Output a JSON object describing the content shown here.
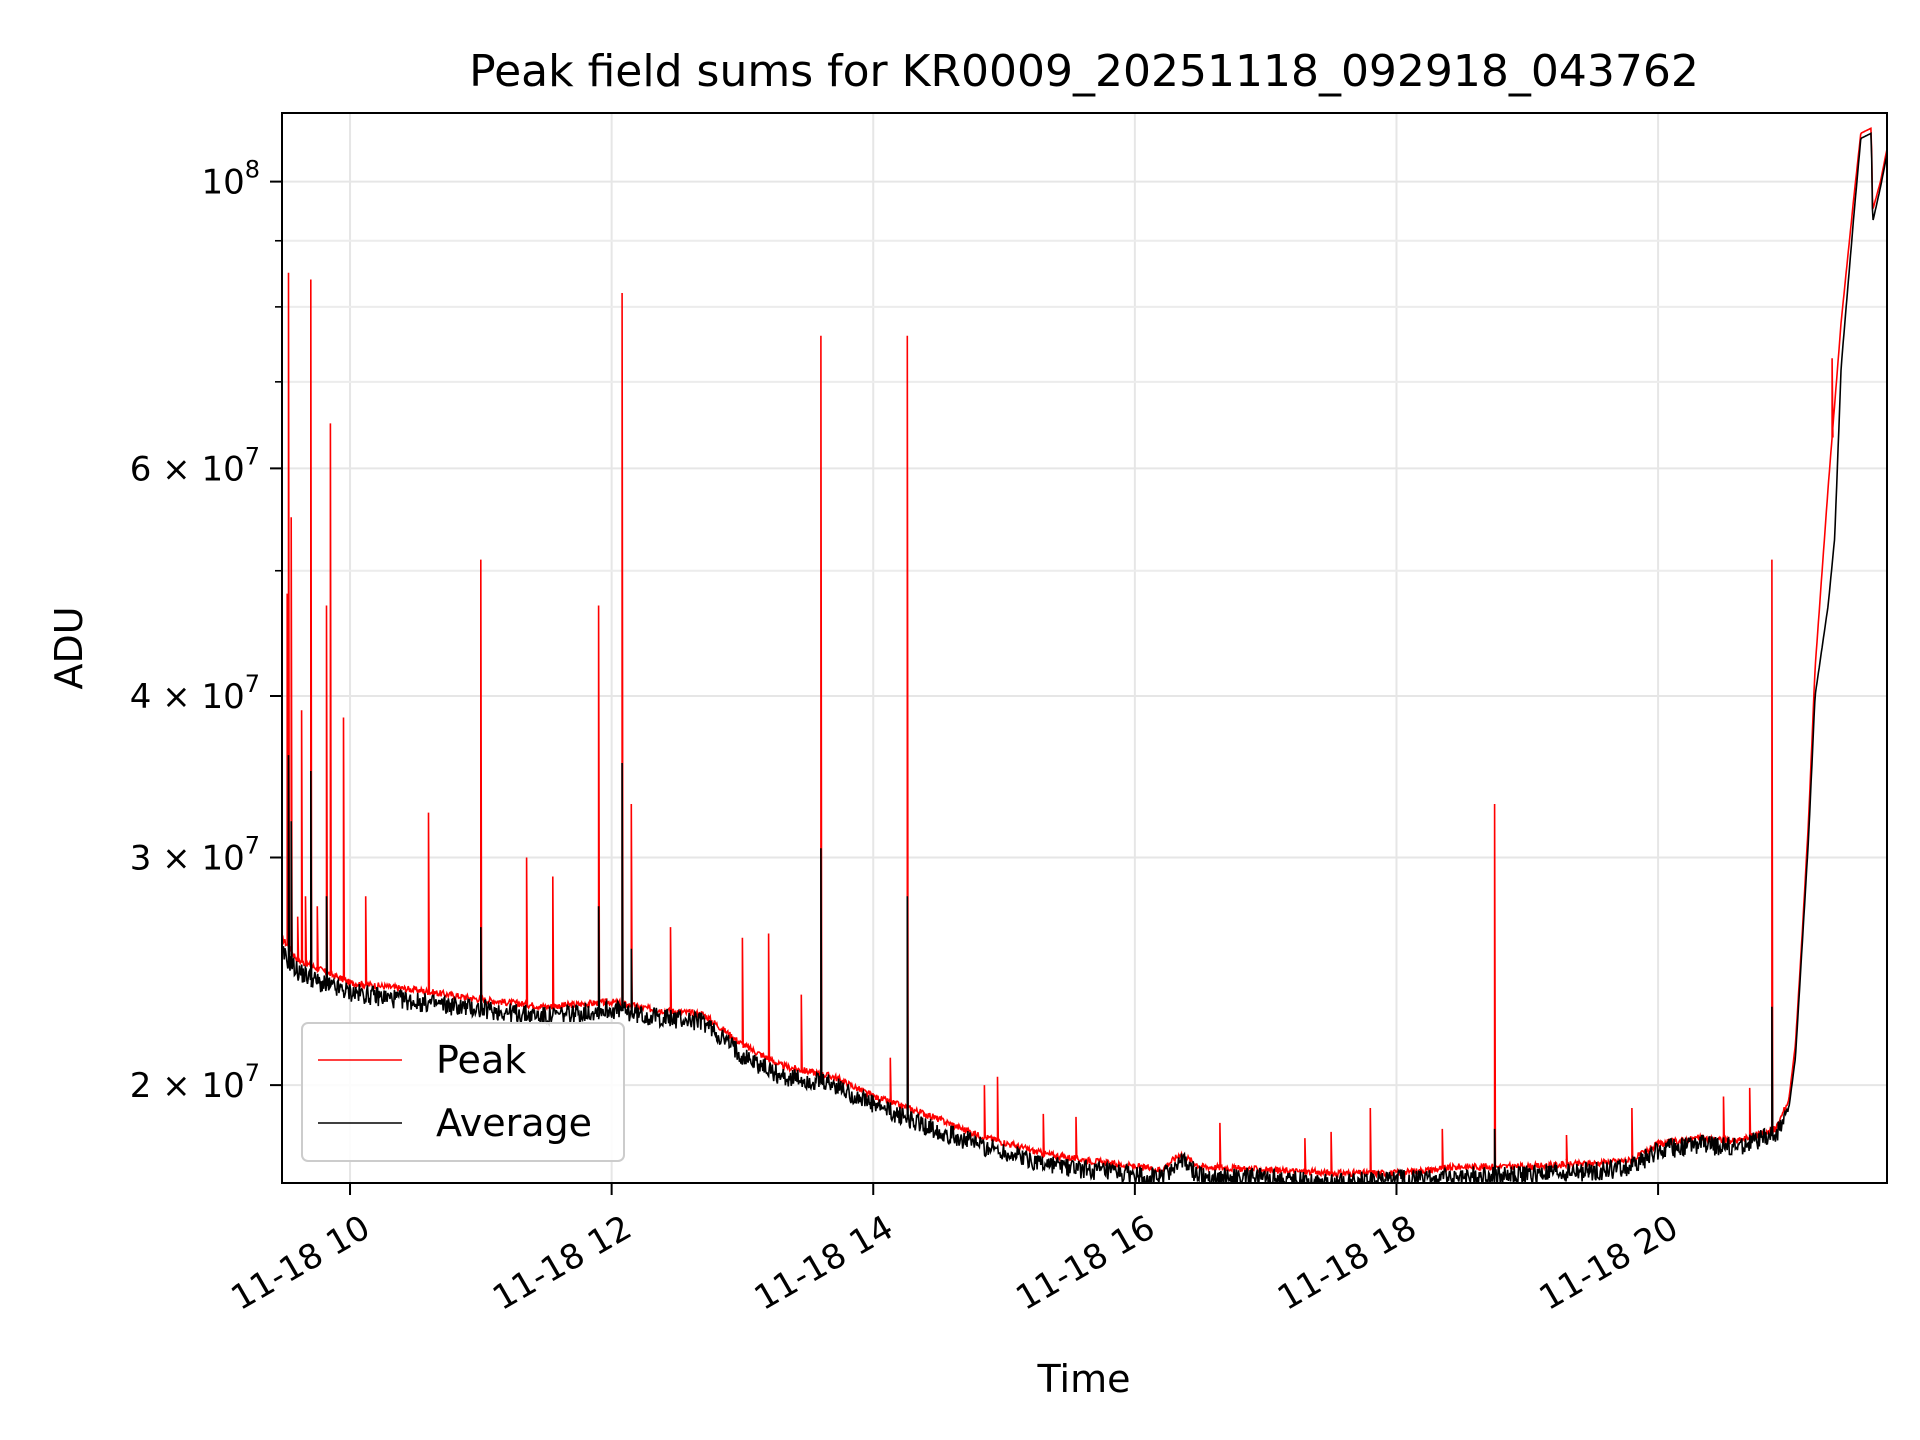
{
  "chart_data": {
    "type": "line",
    "title": "Peak field sums for KR0009_20251118_092918_043762",
    "xlabel": "Time",
    "ylabel": "ADU",
    "x_range_hours": [
      9.48,
      21.75
    ],
    "ylim": [
      16800000,
      113000000
    ],
    "y_scale": "log",
    "grid": true,
    "legend_position": "lower-left",
    "x_ticks": [
      {
        "hour": 10,
        "label": "11-18 10"
      },
      {
        "hour": 12,
        "label": "11-18 12"
      },
      {
        "hour": 14,
        "label": "11-18 14"
      },
      {
        "hour": 16,
        "label": "11-18 16"
      },
      {
        "hour": 18,
        "label": "11-18 18"
      },
      {
        "hour": 20,
        "label": "11-18 20"
      }
    ],
    "y_ticks": [
      {
        "value": 20000000,
        "mantissa": "2",
        "exp": "7",
        "times": "×",
        "base": "10"
      },
      {
        "value": 30000000,
        "mantissa": "3",
        "exp": "7",
        "times": "×",
        "base": "10"
      },
      {
        "value": 40000000,
        "mantissa": "4",
        "exp": "7",
        "times": "×",
        "base": "10"
      },
      {
        "value": 60000000,
        "mantissa": "6",
        "exp": "7",
        "times": "×",
        "base": "10"
      },
      {
        "value": 100000000,
        "mantissa": "",
        "exp": "8",
        "times": "",
        "base": "10"
      }
    ],
    "y_minor_ticks": [
      50000000,
      70000000,
      80000000,
      90000000
    ],
    "series": [
      {
        "name": "Peak",
        "color": "#ff0000",
        "baseline": [
          [
            9.48,
            26000000
          ],
          [
            9.6,
            25000000
          ],
          [
            9.8,
            24500000
          ],
          [
            10.0,
            24000000
          ],
          [
            10.5,
            23700000
          ],
          [
            11.0,
            23300000
          ],
          [
            11.5,
            23000000
          ],
          [
            12.0,
            23200000
          ],
          [
            12.3,
            22900000
          ],
          [
            12.7,
            22700000
          ],
          [
            13.0,
            21500000
          ],
          [
            13.3,
            20700000
          ],
          [
            13.7,
            20300000
          ],
          [
            14.0,
            19600000
          ],
          [
            14.4,
            19000000
          ],
          [
            14.8,
            18300000
          ],
          [
            15.3,
            17700000
          ],
          [
            15.8,
            17400000
          ],
          [
            16.2,
            17200000
          ],
          [
            16.35,
            17700000
          ],
          [
            16.5,
            17300000
          ],
          [
            17.0,
            17200000
          ],
          [
            17.5,
            17100000
          ],
          [
            18.0,
            17100000
          ],
          [
            18.5,
            17300000
          ],
          [
            19.0,
            17300000
          ],
          [
            19.5,
            17400000
          ],
          [
            19.8,
            17500000
          ],
          [
            20.0,
            18000000
          ],
          [
            20.3,
            18200000
          ],
          [
            20.6,
            18100000
          ],
          [
            20.9,
            18500000
          ],
          [
            21.0,
            19500000
          ],
          [
            21.05,
            21500000
          ],
          [
            21.1,
            26000000
          ],
          [
            21.15,
            32000000
          ],
          [
            21.2,
            42000000
          ],
          [
            21.3,
            58000000
          ],
          [
            21.4,
            78000000
          ],
          [
            21.5,
            98000000
          ],
          [
            21.55,
            109000000
          ],
          [
            21.63,
            110000000
          ],
          [
            21.64,
            95000000
          ],
          [
            21.7,
            100000000
          ],
          [
            21.75,
            106000000
          ]
        ],
        "spikes": [
          [
            9.52,
            48000000
          ],
          [
            9.53,
            85000000
          ],
          [
            9.55,
            55000000
          ],
          [
            9.6,
            27000000
          ],
          [
            9.63,
            39000000
          ],
          [
            9.66,
            28000000
          ],
          [
            9.7,
            84000000
          ],
          [
            9.75,
            27500000
          ],
          [
            9.82,
            47000000
          ],
          [
            9.85,
            65000000
          ],
          [
            9.95,
            38500000
          ],
          [
            10.12,
            28000000
          ],
          [
            10.6,
            32500000
          ],
          [
            11.0,
            51000000
          ],
          [
            11.35,
            30000000
          ],
          [
            11.55,
            29000000
          ],
          [
            11.9,
            47000000
          ],
          [
            12.08,
            82000000
          ],
          [
            12.15,
            33000000
          ],
          [
            12.45,
            26500000
          ],
          [
            13.0,
            26000000
          ],
          [
            13.2,
            26200000
          ],
          [
            13.45,
            23500000
          ],
          [
            13.6,
            76000000
          ],
          [
            14.13,
            21000000
          ],
          [
            14.26,
            76000000
          ],
          [
            14.85,
            20000000
          ],
          [
            14.95,
            20300000
          ],
          [
            15.3,
            19000000
          ],
          [
            15.55,
            18900000
          ],
          [
            16.65,
            18700000
          ],
          [
            17.3,
            18200000
          ],
          [
            17.5,
            18400000
          ],
          [
            17.8,
            19200000
          ],
          [
            18.35,
            18500000
          ],
          [
            18.75,
            33000000
          ],
          [
            19.3,
            18300000
          ],
          [
            19.8,
            19200000
          ],
          [
            20.5,
            19600000
          ],
          [
            20.7,
            19900000
          ],
          [
            20.87,
            51000000
          ],
          [
            21.33,
            73000000
          ]
        ]
      },
      {
        "name": "Average",
        "color": "#000000",
        "baseline": [
          [
            9.48,
            25300000
          ],
          [
            9.6,
            24500000
          ],
          [
            9.8,
            23900000
          ],
          [
            10.0,
            23600000
          ],
          [
            10.5,
            23200000
          ],
          [
            11.0,
            22900000
          ],
          [
            11.5,
            22600000
          ],
          [
            12.0,
            22900000
          ],
          [
            12.3,
            22600000
          ],
          [
            12.7,
            22400000
          ],
          [
            13.0,
            21100000
          ],
          [
            13.3,
            20300000
          ],
          [
            13.7,
            20000000
          ],
          [
            14.0,
            19300000
          ],
          [
            14.4,
            18600000
          ],
          [
            14.8,
            18000000
          ],
          [
            15.3,
            17400000
          ],
          [
            15.8,
            17100000
          ],
          [
            16.2,
            16950000
          ],
          [
            16.35,
            17500000
          ],
          [
            16.5,
            17000000
          ],
          [
            17.0,
            16950000
          ],
          [
            17.5,
            16850000
          ],
          [
            18.0,
            16900000
          ],
          [
            18.5,
            17000000
          ],
          [
            19.0,
            17050000
          ],
          [
            19.5,
            17150000
          ],
          [
            19.8,
            17300000
          ],
          [
            20.0,
            17800000
          ],
          [
            20.3,
            18000000
          ],
          [
            20.6,
            17900000
          ],
          [
            20.9,
            18300000
          ],
          [
            21.0,
            19200000
          ],
          [
            21.05,
            21000000
          ],
          [
            21.1,
            25500000
          ],
          [
            21.15,
            31000000
          ],
          [
            21.2,
            40000000
          ],
          [
            21.3,
            47000000
          ],
          [
            21.35,
            53000000
          ],
          [
            21.4,
            72000000
          ],
          [
            21.5,
            95000000
          ],
          [
            21.55,
            108000000
          ],
          [
            21.63,
            109000000
          ],
          [
            21.64,
            93000000
          ],
          [
            21.7,
            99000000
          ],
          [
            21.75,
            105000000
          ]
        ],
        "spikes": [
          [
            9.53,
            36000000
          ],
          [
            9.55,
            32000000
          ],
          [
            9.7,
            35000000
          ],
          [
            9.82,
            28000000
          ],
          [
            11.0,
            26500000
          ],
          [
            11.9,
            27500000
          ],
          [
            12.08,
            35500000
          ],
          [
            12.15,
            25500000
          ],
          [
            13.6,
            30500000
          ],
          [
            14.26,
            28000000
          ],
          [
            18.75,
            18500000
          ],
          [
            20.87,
            23000000
          ]
        ]
      }
    ]
  }
}
